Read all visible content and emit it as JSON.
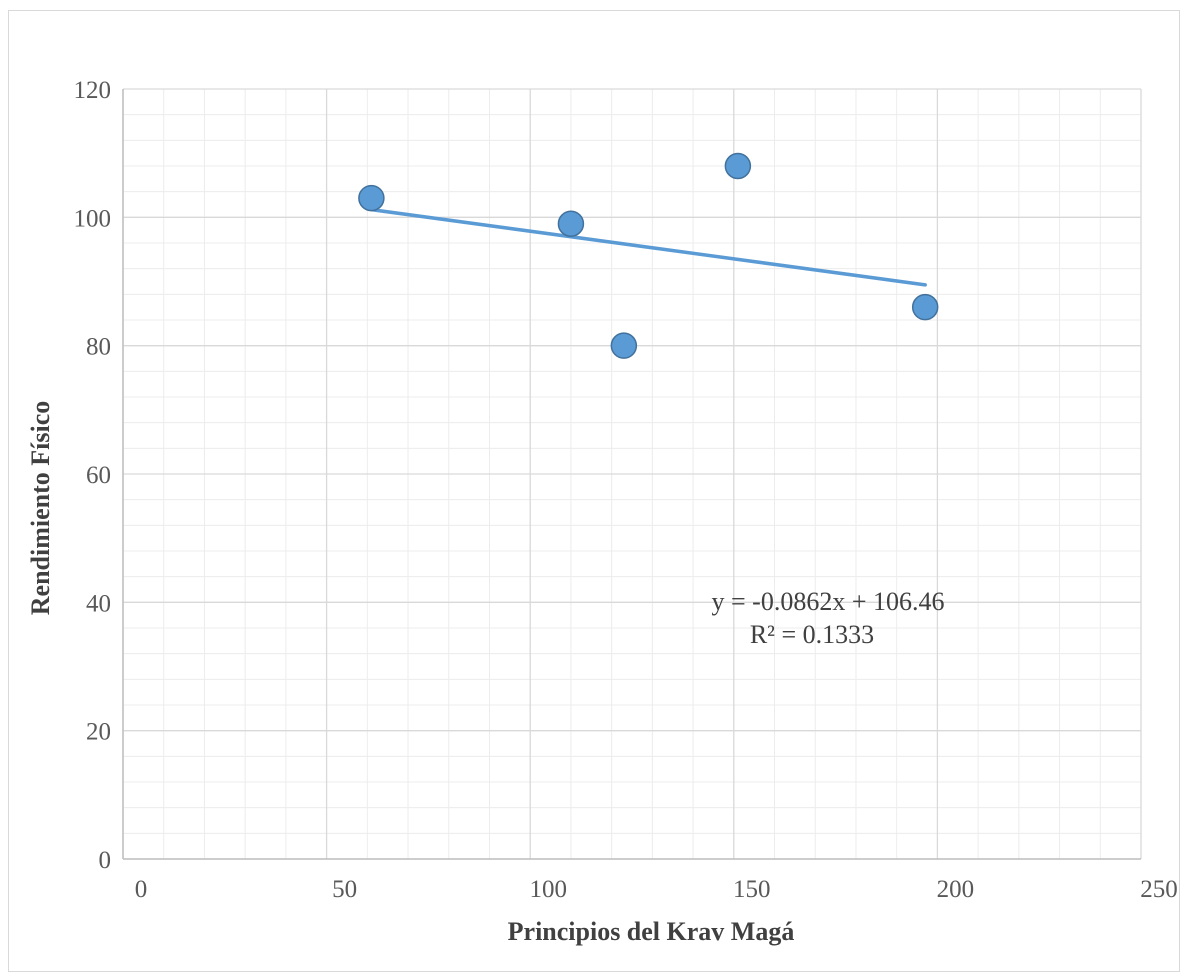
{
  "chart_data": {
    "type": "scatter",
    "title": "",
    "xlabel": "Principios del Krav Magá",
    "ylabel": "Rendimiento Físico",
    "xlim": [
      0,
      250
    ],
    "ylim": [
      0,
      120
    ],
    "x_ticks": [
      0,
      50,
      100,
      150,
      200,
      250
    ],
    "y_ticks": [
      0,
      20,
      40,
      60,
      80,
      100,
      120
    ],
    "x_minor_step": 10,
    "y_minor_step": 4,
    "grid": true,
    "legend": "none",
    "point_color": "#5b9bd5",
    "point_stroke": "#41719c",
    "trend_color": "#5b9bd5",
    "grid_major_color": "#d9d9d9",
    "grid_minor_color": "#ececec",
    "series": [
      {
        "x": [
          61,
          110,
          123,
          151,
          197
        ],
        "y": [
          103,
          99,
          80,
          108,
          86
        ]
      }
    ],
    "trendline": {
      "slope": -0.0862,
      "intercept": 106.46,
      "x_range": [
        61,
        197
      ],
      "equation": "y = -0.0862x + 106.46",
      "r_squared": "R² = 0.1333"
    }
  }
}
